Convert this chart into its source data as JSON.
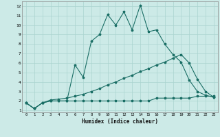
{
  "xlabel": "Humidex (Indice chaleur)",
  "bg_color": "#cceae7",
  "grid_color": "#aad4d0",
  "line_color": "#1a6e65",
  "xlim": [
    -0.5,
    23.5
  ],
  "ylim": [
    0.8,
    12.5
  ],
  "xticks": [
    0,
    1,
    2,
    3,
    4,
    5,
    6,
    7,
    8,
    9,
    10,
    11,
    12,
    13,
    14,
    15,
    16,
    17,
    18,
    19,
    20,
    21,
    22,
    23
  ],
  "yticks": [
    1,
    2,
    3,
    4,
    5,
    6,
    7,
    8,
    9,
    10,
    11,
    12
  ],
  "series1_x": [
    0,
    1,
    2,
    3,
    4,
    5,
    6,
    7,
    8,
    9,
    10,
    11,
    12,
    13,
    14,
    15,
    16,
    17,
    18,
    19,
    20,
    21,
    22,
    23
  ],
  "series1_y": [
    1.8,
    1.2,
    1.8,
    2.0,
    2.0,
    2.0,
    5.8,
    4.5,
    8.3,
    9.0,
    11.1,
    10.0,
    11.4,
    9.5,
    12.1,
    9.3,
    9.5,
    8.0,
    6.9,
    6.1,
    4.2,
    3.0,
    2.6,
    2.4
  ],
  "series2_x": [
    0,
    1,
    2,
    3,
    4,
    5,
    6,
    7,
    8,
    9,
    10,
    11,
    12,
    13,
    14,
    15,
    16,
    17,
    18,
    19,
    20,
    21,
    22,
    23
  ],
  "series2_y": [
    1.8,
    1.2,
    1.8,
    2.1,
    2.2,
    2.3,
    2.5,
    2.7,
    3.0,
    3.3,
    3.7,
    4.0,
    4.4,
    4.7,
    5.1,
    5.4,
    5.8,
    6.1,
    6.5,
    6.9,
    6.0,
    4.3,
    3.0,
    2.4
  ],
  "series3_x": [
    0,
    1,
    2,
    3,
    4,
    5,
    6,
    7,
    8,
    9,
    10,
    11,
    12,
    13,
    14,
    15,
    16,
    17,
    18,
    19,
    20,
    21,
    22,
    23
  ],
  "series3_y": [
    1.8,
    1.2,
    1.8,
    2.0,
    2.0,
    2.0,
    2.0,
    2.0,
    2.0,
    2.0,
    2.0,
    2.0,
    2.0,
    2.0,
    2.0,
    2.0,
    2.3,
    2.3,
    2.3,
    2.3,
    2.3,
    2.5,
    2.5,
    2.5
  ]
}
